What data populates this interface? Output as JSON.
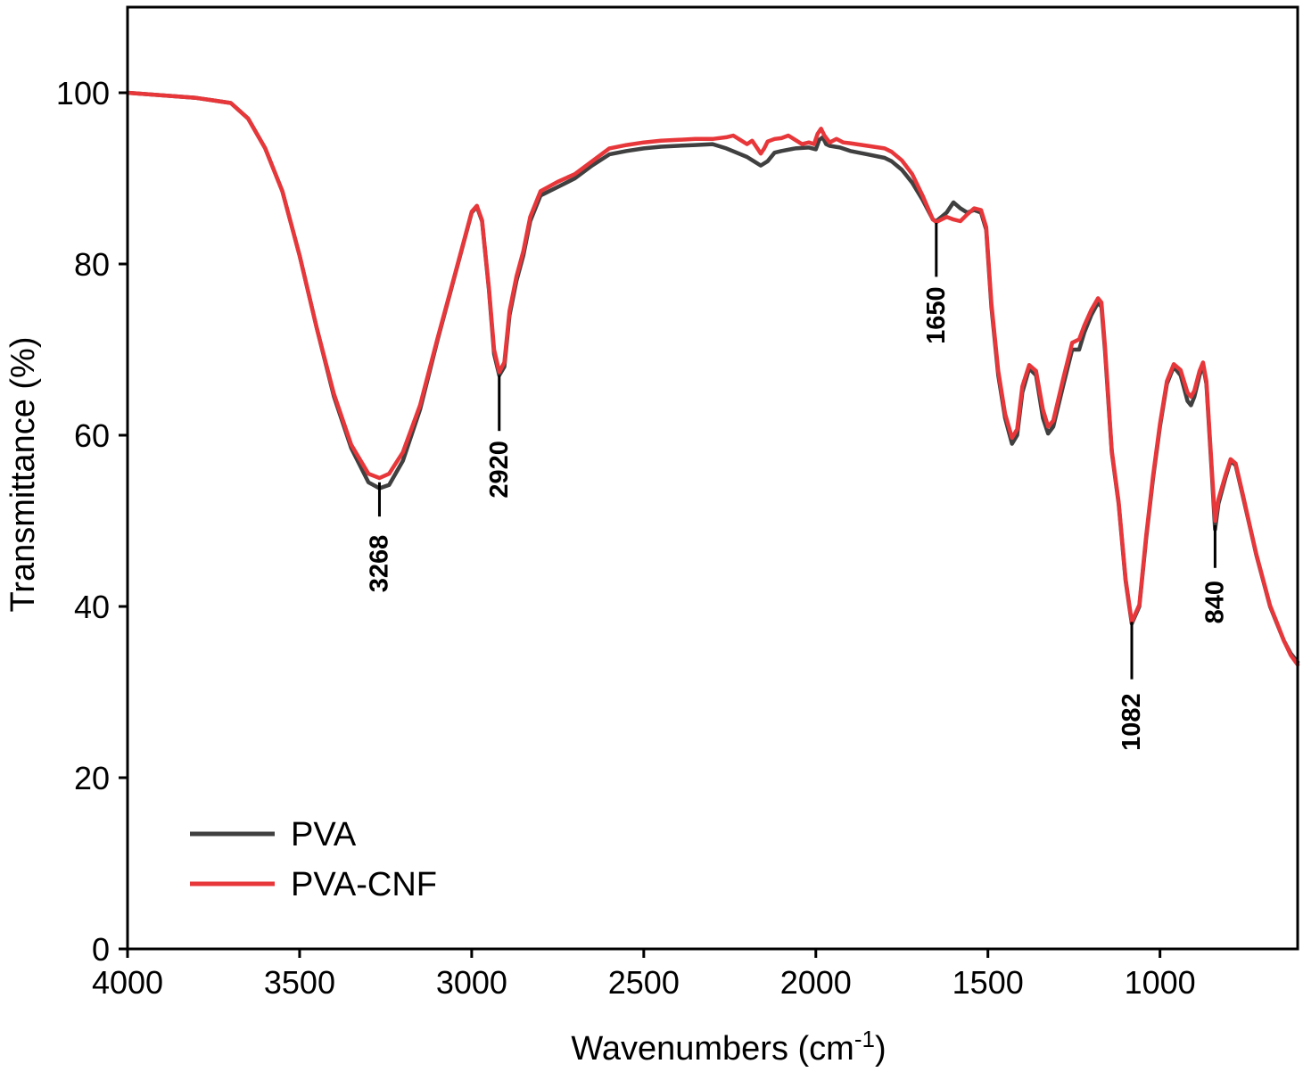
{
  "chart_data": {
    "type": "line",
    "title": "",
    "xlabel": "Wavenumbers (cm",
    "xlabel_sup": "-1",
    "xlabel_close": ")",
    "ylabel": "Transmittance (%)",
    "xlim": [
      4000,
      600
    ],
    "ylim": [
      0,
      110
    ],
    "x_ticks": [
      4000,
      3500,
      3000,
      2500,
      2000,
      1500,
      1000
    ],
    "y_ticks": [
      0,
      20,
      40,
      60,
      80,
      100
    ],
    "legend_position": "bottom-left",
    "series": [
      {
        "name": "PVA",
        "color": "#404040",
        "points": [
          [
            4000,
            100
          ],
          [
            3900,
            99.7
          ],
          [
            3800,
            99.4
          ],
          [
            3750,
            99.1
          ],
          [
            3700,
            98.8
          ],
          [
            3650,
            97
          ],
          [
            3600,
            93.5
          ],
          [
            3550,
            88.5
          ],
          [
            3500,
            81
          ],
          [
            3450,
            72.5
          ],
          [
            3400,
            64.5
          ],
          [
            3350,
            58.5
          ],
          [
            3300,
            54.5
          ],
          [
            3268,
            53.8
          ],
          [
            3240,
            54.2
          ],
          [
            3200,
            57
          ],
          [
            3150,
            63
          ],
          [
            3100,
            71
          ],
          [
            3050,
            78.5
          ],
          [
            3020,
            83
          ],
          [
            3000,
            86
          ],
          [
            2985,
            86.7
          ],
          [
            2970,
            85
          ],
          [
            2950,
            77
          ],
          [
            2935,
            69.5
          ],
          [
            2920,
            67
          ],
          [
            2905,
            68
          ],
          [
            2890,
            74
          ],
          [
            2870,
            78
          ],
          [
            2850,
            81
          ],
          [
            2830,
            85
          ],
          [
            2800,
            88
          ],
          [
            2750,
            89
          ],
          [
            2700,
            90
          ],
          [
            2650,
            91.5
          ],
          [
            2600,
            92.8
          ],
          [
            2550,
            93.2
          ],
          [
            2500,
            93.5
          ],
          [
            2450,
            93.7
          ],
          [
            2400,
            93.8
          ],
          [
            2350,
            93.9
          ],
          [
            2300,
            94
          ],
          [
            2260,
            93.5
          ],
          [
            2230,
            93
          ],
          [
            2200,
            92.5
          ],
          [
            2180,
            92
          ],
          [
            2160,
            91.5
          ],
          [
            2140,
            92
          ],
          [
            2120,
            93
          ],
          [
            2100,
            93.2
          ],
          [
            2060,
            93.5
          ],
          [
            2020,
            93.6
          ],
          [
            2000,
            93.4
          ],
          [
            1990,
            94.5
          ],
          [
            1980,
            94.8
          ],
          [
            1970,
            94
          ],
          [
            1960,
            93.8
          ],
          [
            1930,
            93.6
          ],
          [
            1900,
            93.2
          ],
          [
            1850,
            92.8
          ],
          [
            1800,
            92.4
          ],
          [
            1780,
            92
          ],
          [
            1750,
            91
          ],
          [
            1720,
            89.5
          ],
          [
            1690,
            87.5
          ],
          [
            1660,
            85.2
          ],
          [
            1650,
            85
          ],
          [
            1635,
            85.5
          ],
          [
            1620,
            86
          ],
          [
            1600,
            87.2
          ],
          [
            1580,
            86.5
          ],
          [
            1560,
            86
          ],
          [
            1540,
            86.3
          ],
          [
            1520,
            86
          ],
          [
            1505,
            84
          ],
          [
            1490,
            75
          ],
          [
            1470,
            67
          ],
          [
            1450,
            62
          ],
          [
            1430,
            59
          ],
          [
            1415,
            60
          ],
          [
            1400,
            65
          ],
          [
            1380,
            67.8
          ],
          [
            1360,
            67
          ],
          [
            1340,
            62
          ],
          [
            1325,
            60.2
          ],
          [
            1310,
            61
          ],
          [
            1280,
            66
          ],
          [
            1255,
            70
          ],
          [
            1235,
            70
          ],
          [
            1220,
            72
          ],
          [
            1200,
            74
          ],
          [
            1180,
            75.5
          ],
          [
            1170,
            75
          ],
          [
            1160,
            70
          ],
          [
            1140,
            58
          ],
          [
            1120,
            52
          ],
          [
            1100,
            43
          ],
          [
            1082,
            38
          ],
          [
            1060,
            40
          ],
          [
            1040,
            48
          ],
          [
            1020,
            55
          ],
          [
            1000,
            61
          ],
          [
            980,
            66
          ],
          [
            960,
            68
          ],
          [
            940,
            67
          ],
          [
            920,
            64
          ],
          [
            910,
            63.5
          ],
          [
            900,
            64.5
          ],
          [
            885,
            67
          ],
          [
            875,
            68.2
          ],
          [
            865,
            66
          ],
          [
            850,
            56
          ],
          [
            840,
            49
          ],
          [
            830,
            52
          ],
          [
            810,
            55
          ],
          [
            795,
            57
          ],
          [
            780,
            56.5
          ],
          [
            760,
            53
          ],
          [
            740,
            49.5
          ],
          [
            720,
            46
          ],
          [
            700,
            43
          ],
          [
            680,
            40
          ],
          [
            660,
            38
          ],
          [
            640,
            36
          ],
          [
            620,
            34.5
          ],
          [
            600,
            33.5
          ]
        ]
      },
      {
        "name": "PVA-CNF",
        "color": "#e8373a",
        "points": [
          [
            4000,
            100
          ],
          [
            3900,
            99.7
          ],
          [
            3800,
            99.4
          ],
          [
            3750,
            99.1
          ],
          [
            3700,
            98.8
          ],
          [
            3650,
            97
          ],
          [
            3600,
            93.5
          ],
          [
            3550,
            88.5
          ],
          [
            3500,
            81
          ],
          [
            3450,
            72.5
          ],
          [
            3400,
            64.8
          ],
          [
            3350,
            58.9
          ],
          [
            3300,
            55.5
          ],
          [
            3268,
            55
          ],
          [
            3240,
            55.5
          ],
          [
            3200,
            58
          ],
          [
            3150,
            63.5
          ],
          [
            3100,
            71.2
          ],
          [
            3050,
            78.6
          ],
          [
            3020,
            83.1
          ],
          [
            3000,
            86.1
          ],
          [
            2985,
            86.8
          ],
          [
            2970,
            85.1
          ],
          [
            2950,
            77.2
          ],
          [
            2935,
            70
          ],
          [
            2920,
            67.4
          ],
          [
            2905,
            68.5
          ],
          [
            2890,
            74.5
          ],
          [
            2870,
            78.5
          ],
          [
            2850,
            81.5
          ],
          [
            2830,
            85.5
          ],
          [
            2800,
            88.5
          ],
          [
            2750,
            89.6
          ],
          [
            2700,
            90.5
          ],
          [
            2650,
            92
          ],
          [
            2600,
            93.5
          ],
          [
            2550,
            93.9
          ],
          [
            2500,
            94.2
          ],
          [
            2450,
            94.4
          ],
          [
            2400,
            94.5
          ],
          [
            2350,
            94.6
          ],
          [
            2300,
            94.6
          ],
          [
            2260,
            94.8
          ],
          [
            2240,
            95
          ],
          [
            2220,
            94.5
          ],
          [
            2200,
            94
          ],
          [
            2185,
            94.4
          ],
          [
            2170,
            93.5
          ],
          [
            2160,
            92.9
          ],
          [
            2150,
            93.5
          ],
          [
            2140,
            94.3
          ],
          [
            2120,
            94.6
          ],
          [
            2100,
            94.7
          ],
          [
            2080,
            95
          ],
          [
            2060,
            94.5
          ],
          [
            2040,
            94
          ],
          [
            2020,
            94.2
          ],
          [
            2005,
            94
          ],
          [
            1995,
            95.2
          ],
          [
            1985,
            95.8
          ],
          [
            1975,
            95
          ],
          [
            1960,
            94.2
          ],
          [
            1940,
            94.6
          ],
          [
            1920,
            94.2
          ],
          [
            1900,
            94.1
          ],
          [
            1850,
            93.8
          ],
          [
            1800,
            93.5
          ],
          [
            1780,
            93.1
          ],
          [
            1750,
            92.1
          ],
          [
            1720,
            90.5
          ],
          [
            1690,
            88
          ],
          [
            1660,
            85.2
          ],
          [
            1650,
            84.9
          ],
          [
            1635,
            85.2
          ],
          [
            1620,
            85.5
          ],
          [
            1600,
            85.2
          ],
          [
            1580,
            85
          ],
          [
            1560,
            85.8
          ],
          [
            1540,
            86.5
          ],
          [
            1520,
            86.3
          ],
          [
            1505,
            84.3
          ],
          [
            1490,
            75.4
          ],
          [
            1470,
            67.5
          ],
          [
            1450,
            62.5
          ],
          [
            1430,
            59.7
          ],
          [
            1415,
            60.7
          ],
          [
            1400,
            65.7
          ],
          [
            1380,
            68.2
          ],
          [
            1360,
            67.5
          ],
          [
            1340,
            63
          ],
          [
            1325,
            61
          ],
          [
            1310,
            61.7
          ],
          [
            1280,
            66.8
          ],
          [
            1255,
            70.8
          ],
          [
            1235,
            71.2
          ],
          [
            1220,
            72.8
          ],
          [
            1200,
            74.6
          ],
          [
            1180,
            76
          ],
          [
            1170,
            75.5
          ],
          [
            1160,
            70.5
          ],
          [
            1140,
            58.2
          ],
          [
            1120,
            52.2
          ],
          [
            1100,
            43.2
          ],
          [
            1082,
            38.2
          ],
          [
            1060,
            40.2
          ],
          [
            1040,
            48.3
          ],
          [
            1020,
            55.3
          ],
          [
            1000,
            61.3
          ],
          [
            980,
            66.3
          ],
          [
            960,
            68.3
          ],
          [
            940,
            67.6
          ],
          [
            920,
            65
          ],
          [
            910,
            64.5
          ],
          [
            900,
            65.2
          ],
          [
            885,
            67.5
          ],
          [
            875,
            68.5
          ],
          [
            865,
            66.3
          ],
          [
            850,
            56.5
          ],
          [
            840,
            50
          ],
          [
            830,
            52.5
          ],
          [
            810,
            55.3
          ],
          [
            795,
            57.2
          ],
          [
            780,
            56.7
          ],
          [
            760,
            53.2
          ],
          [
            740,
            49.6
          ],
          [
            720,
            46.1
          ],
          [
            700,
            43.1
          ],
          [
            680,
            40.1
          ],
          [
            660,
            38.1
          ],
          [
            640,
            36
          ],
          [
            620,
            34.3
          ],
          [
            600,
            33.2
          ]
        ]
      }
    ],
    "annotations": [
      {
        "label": "3268",
        "x": 3268,
        "y_start": 54.5,
        "y_end": 50.5,
        "text_center_y": 45
      },
      {
        "label": "2920",
        "x": 2920,
        "y_start": 67,
        "y_end": 60.5,
        "text_center_y": 56
      },
      {
        "label": "1650",
        "x": 1650,
        "y_start": 84.8,
        "y_end": 78.5,
        "text_center_y": 74
      },
      {
        "label": "1082",
        "x": 1082,
        "y_start": 38.2,
        "y_end": 31.5,
        "text_center_y": 26.5
      },
      {
        "label": "840",
        "x": 840,
        "y_start": 49.5,
        "y_end": 44.5,
        "text_center_y": 40.5
      }
    ]
  }
}
